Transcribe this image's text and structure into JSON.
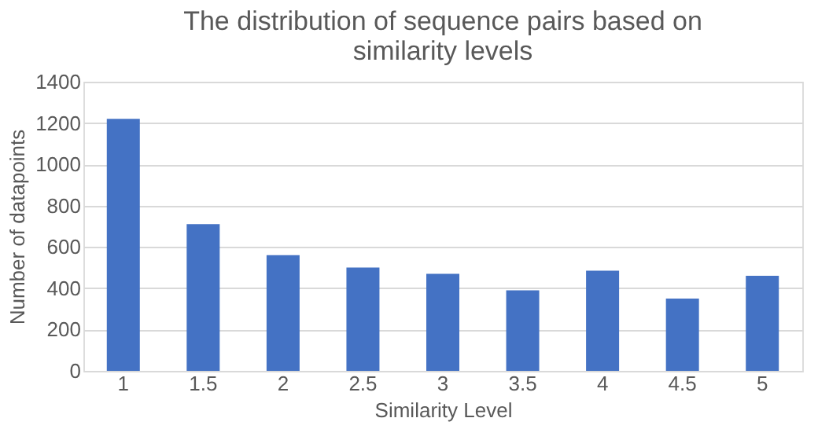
{
  "chart_data": {
    "type": "bar",
    "title": "The distribution of sequence pairs based on similarity levels",
    "xlabel": "Similarity Level",
    "ylabel": "Number of datapoints",
    "categories": [
      "1",
      "1.5",
      "2",
      "2.5",
      "3",
      "3.5",
      "4",
      "4.5",
      "5"
    ],
    "values": [
      1220,
      710,
      560,
      500,
      470,
      390,
      485,
      350,
      460
    ],
    "color": "#4472c4",
    "ylim": [
      0,
      1400
    ],
    "yticks": [
      0,
      200,
      400,
      600,
      800,
      1000,
      1200,
      1400
    ],
    "grid": "y"
  }
}
